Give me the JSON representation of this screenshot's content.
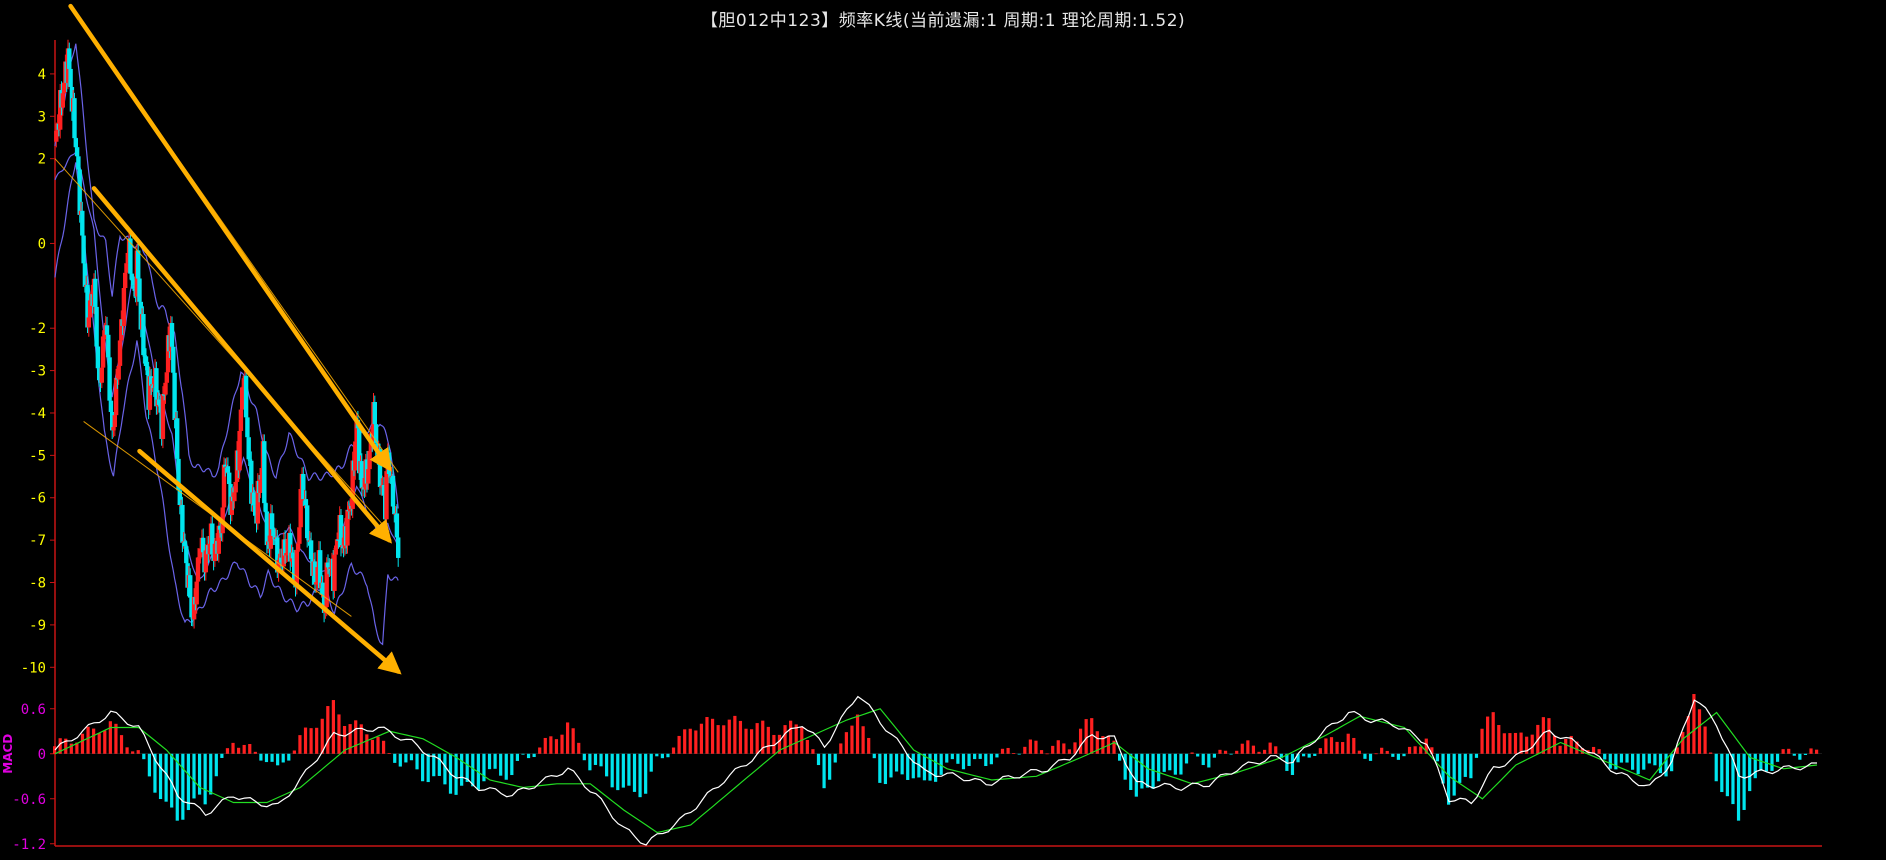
{
  "chart_title": "【胆012中123】频率K线(当前遗漏:1 周期:1 理论周期:1.52)",
  "chart_data": [
    {
      "type": "candlestick",
      "panel": "main",
      "title": "【胆012中123】频率K线(当前遗漏:1 周期:1 理论周期:1.52)",
      "y_ticks": [
        "4",
        "3",
        "2",
        "0",
        "-2",
        "-3",
        "-4",
        "-5",
        "-6",
        "-7",
        "-8",
        "-9",
        "-10"
      ],
      "ylim": [
        -10.3,
        4.8
      ],
      "bars_count": 264,
      "up_color": "#ff2020",
      "down_color": "#00e5ee",
      "close_path": [
        [
          0,
          2.4
        ],
        [
          10,
          4.4
        ],
        [
          17,
          2.0
        ],
        [
          25,
          -1.8
        ],
        [
          30,
          -1.0
        ],
        [
          34,
          -3.5
        ],
        [
          39,
          -1.7
        ],
        [
          44,
          -4.6
        ],
        [
          51,
          -2.0
        ],
        [
          56,
          0.0
        ],
        [
          61,
          -1.3
        ],
        [
          63,
          -0.4
        ],
        [
          66,
          -1.8
        ],
        [
          72,
          -3.5
        ],
        [
          76,
          -3.2
        ],
        [
          82,
          -4.2
        ],
        [
          89,
          -1.9
        ],
        [
          95,
          -5.7
        ],
        [
          97,
          -6.5
        ],
        [
          106,
          -8.9
        ],
        [
          112,
          -7.0
        ],
        [
          115,
          -7.5
        ],
        [
          120,
          -6.9
        ],
        [
          122,
          -7.4
        ],
        [
          124,
          -7.1
        ],
        [
          128,
          -6.7
        ],
        [
          131,
          -5.0
        ],
        [
          136,
          -6.3
        ],
        [
          141,
          -5.0
        ],
        [
          145,
          -3.0
        ],
        [
          150,
          -5.5
        ],
        [
          154,
          -6.5
        ],
        [
          160,
          -5.0
        ],
        [
          163,
          -7.2
        ],
        [
          167,
          -6.6
        ],
        [
          172,
          -7.6
        ],
        [
          175,
          -7.4
        ],
        [
          180,
          -7.0
        ],
        [
          185,
          -8.0
        ],
        [
          190,
          -5.5
        ],
        [
          195,
          -7.0
        ],
        [
          200,
          -8.0
        ],
        [
          203,
          -7.5
        ],
        [
          207,
          -8.7
        ],
        [
          210,
          -7.5
        ],
        [
          214,
          -7.8
        ],
        [
          218,
          -6.7
        ],
        [
          222,
          -7.2
        ],
        [
          224,
          -6.7
        ],
        [
          228,
          -6.0
        ],
        [
          232,
          -4.2
        ],
        [
          236,
          -5.8
        ],
        [
          241,
          -5.3
        ],
        [
          245,
          -4.0
        ],
        [
          250,
          -5.5
        ],
        [
          254,
          -6.2
        ],
        [
          256,
          -5.0
        ],
        [
          260,
          -6.0
        ],
        [
          264,
          -7.2
        ]
      ],
      "bollinger": {
        "upper": [
          [
            0,
            2.3
          ],
          [
            16,
            4.8
          ],
          [
            30,
            0.5
          ],
          [
            39,
            0.0
          ],
          [
            44,
            -1.2
          ],
          [
            50,
            0.2
          ],
          [
            60,
            0.0
          ],
          [
            70,
            -0.2
          ],
          [
            75,
            -1.0
          ],
          [
            80,
            -1.5
          ],
          [
            85,
            -1.6
          ],
          [
            92,
            -2.2
          ],
          [
            98,
            -3.5
          ],
          [
            103,
            -5.0
          ],
          [
            108,
            -5.3
          ],
          [
            116,
            -5.3
          ],
          [
            121,
            -5.5
          ],
          [
            126,
            -5.3
          ],
          [
            133,
            -4.3
          ],
          [
            143,
            -3.0
          ],
          [
            155,
            -4.0
          ],
          [
            163,
            -5.0
          ],
          [
            170,
            -5.5
          ],
          [
            180,
            -4.5
          ],
          [
            195,
            -5.5
          ],
          [
            208,
            -5.5
          ],
          [
            220,
            -5.3
          ],
          [
            228,
            -4.8
          ],
          [
            240,
            -4.4
          ],
          [
            250,
            -4.2
          ],
          [
            258,
            -4.8
          ],
          [
            264,
            -6.3
          ]
        ],
        "middle": [
          [
            0,
            1.5
          ],
          [
            16,
            2.2
          ],
          [
            30,
            0.3
          ],
          [
            37,
            -2.0
          ],
          [
            44,
            -3.6
          ],
          [
            54,
            -2.0
          ],
          [
            60,
            -0.7
          ],
          [
            70,
            -2.0
          ],
          [
            78,
            -3.3
          ],
          [
            90,
            -4.5
          ],
          [
            100,
            -7.0
          ],
          [
            110,
            -8.0
          ],
          [
            118,
            -7.6
          ],
          [
            125,
            -7.0
          ],
          [
            135,
            -6.0
          ],
          [
            145,
            -5.1
          ],
          [
            155,
            -6.0
          ],
          [
            163,
            -6.7
          ],
          [
            170,
            -7.0
          ],
          [
            180,
            -6.7
          ],
          [
            190,
            -7.3
          ],
          [
            200,
            -7.6
          ],
          [
            210,
            -7.8
          ],
          [
            220,
            -6.8
          ],
          [
            232,
            -5.7
          ],
          [
            240,
            -6.3
          ],
          [
            248,
            -6.8
          ],
          [
            256,
            -6.6
          ],
          [
            264,
            -7.2
          ]
        ],
        "lower": [
          [
            0,
            -0.8
          ],
          [
            16,
            2.0
          ],
          [
            28,
            -1.5
          ],
          [
            38,
            -4.5
          ],
          [
            45,
            -5.5
          ],
          [
            52,
            -4.0
          ],
          [
            63,
            -2.3
          ],
          [
            70,
            -4.0
          ],
          [
            80,
            -5.5
          ],
          [
            92,
            -8.0
          ],
          [
            100,
            -9.0
          ],
          [
            110,
            -8.7
          ],
          [
            120,
            -8.2
          ],
          [
            128,
            -8.0
          ],
          [
            140,
            -7.5
          ],
          [
            150,
            -8.0
          ],
          [
            158,
            -8.3
          ],
          [
            164,
            -7.8
          ],
          [
            175,
            -8.3
          ],
          [
            186,
            -8.6
          ],
          [
            194,
            -8.5
          ],
          [
            206,
            -8.0
          ],
          [
            215,
            -8.7
          ],
          [
            221,
            -8.2
          ],
          [
            228,
            -7.6
          ],
          [
            240,
            -8.0
          ],
          [
            246,
            -9.0
          ],
          [
            252,
            -9.5
          ],
          [
            256,
            -7.8
          ],
          [
            264,
            -8.0
          ]
        ]
      },
      "trend_lines": [
        {
          "kind": "thin",
          "from": [
            12,
            5.6
          ],
          "to": [
            264,
            -5.4
          ]
        },
        {
          "kind": "thin",
          "from": [
            0,
            2.0
          ],
          "to": [
            257,
            -6.8
          ]
        },
        {
          "kind": "thin",
          "from": [
            22,
            -4.2
          ],
          "to": [
            228,
            -8.8
          ]
        },
        {
          "kind": "arrow",
          "from": [
            12,
            5.6
          ],
          "to": [
            257,
            -5.3
          ]
        },
        {
          "kind": "arrow",
          "from": [
            30,
            1.3
          ],
          "to": [
            257,
            -7.0
          ]
        },
        {
          "kind": "arrow",
          "from": [
            65,
            -4.9
          ],
          "to": [
            264,
            -10.1
          ]
        }
      ],
      "trend_color": "#ffb000",
      "bollinger_color": "#6a63e8"
    },
    {
      "type": "macd",
      "panel": "sub",
      "name": "MACD",
      "y_ticks": [
        "0.6",
        "0",
        "-0.6",
        "-1.2"
      ],
      "ylim": [
        -1.23,
        0.85
      ],
      "dif_path": [
        [
          0,
          0.05
        ],
        [
          10,
          0.55
        ],
        [
          15,
          0.35
        ],
        [
          18,
          -0.05
        ],
        [
          22,
          -0.55
        ],
        [
          27,
          -0.8
        ],
        [
          32,
          -0.55
        ],
        [
          36,
          -0.65
        ],
        [
          40,
          -0.7
        ],
        [
          44,
          -0.35
        ],
        [
          50,
          0.25
        ],
        [
          58,
          0.35
        ],
        [
          64,
          0.15
        ],
        [
          68,
          -0.05
        ],
        [
          72,
          -0.3
        ],
        [
          76,
          -0.45
        ],
        [
          82,
          -0.55
        ],
        [
          88,
          -0.35
        ],
        [
          92,
          -0.2
        ],
        [
          97,
          -0.55
        ],
        [
          102,
          -1.0
        ],
        [
          106,
          -1.2
        ],
        [
          112,
          -0.9
        ],
        [
          120,
          -0.35
        ],
        [
          128,
          0.1
        ],
        [
          134,
          0.4
        ],
        [
          138,
          0.1
        ],
        [
          144,
          0.8
        ],
        [
          150,
          0.25
        ],
        [
          156,
          -0.25
        ],
        [
          162,
          -0.3
        ],
        [
          167,
          -0.4
        ],
        [
          172,
          -0.3
        ],
        [
          178,
          -0.2
        ],
        [
          182,
          -0.05
        ],
        [
          186,
          0.25
        ],
        [
          190,
          0.2
        ],
        [
          194,
          -0.4
        ],
        [
          202,
          -0.45
        ],
        [
          207,
          -0.4
        ],
        [
          212,
          -0.2
        ],
        [
          218,
          -0.05
        ],
        [
          222,
          -0.1
        ],
        [
          226,
          0.2
        ],
        [
          232,
          0.55
        ],
        [
          236,
          0.45
        ],
        [
          240,
          0.4
        ],
        [
          246,
          0.15
        ],
        [
          250,
          -0.6
        ],
        [
          254,
          -0.65
        ],
        [
          258,
          -0.2
        ],
        [
          262,
          -0.05
        ],
        [
          268,
          0.3
        ],
        [
          274,
          0.1
        ],
        [
          280,
          -0.25
        ],
        [
          286,
          -0.45
        ],
        [
          290,
          -0.1
        ],
        [
          294,
          0.75
        ],
        [
          298,
          0.4
        ],
        [
          302,
          -0.3
        ],
        [
          306,
          -0.25
        ],
        [
          310,
          -0.2
        ],
        [
          316,
          -0.15
        ]
      ],
      "dea_path": [
        [
          0,
          0.0
        ],
        [
          10,
          0.35
        ],
        [
          15,
          0.35
        ],
        [
          20,
          0.05
        ],
        [
          26,
          -0.45
        ],
        [
          32,
          -0.65
        ],
        [
          38,
          -0.65
        ],
        [
          44,
          -0.45
        ],
        [
          52,
          0.05
        ],
        [
          60,
          0.3
        ],
        [
          66,
          0.2
        ],
        [
          72,
          -0.05
        ],
        [
          78,
          -0.35
        ],
        [
          84,
          -0.45
        ],
        [
          90,
          -0.4
        ],
        [
          96,
          -0.4
        ],
        [
          102,
          -0.75
        ],
        [
          108,
          -1.05
        ],
        [
          114,
          -0.95
        ],
        [
          122,
          -0.45
        ],
        [
          130,
          0.05
        ],
        [
          136,
          0.25
        ],
        [
          142,
          0.45
        ],
        [
          148,
          0.6
        ],
        [
          154,
          0.05
        ],
        [
          160,
          -0.2
        ],
        [
          168,
          -0.35
        ],
        [
          176,
          -0.3
        ],
        [
          184,
          -0.05
        ],
        [
          190,
          0.15
        ],
        [
          196,
          -0.2
        ],
        [
          204,
          -0.4
        ],
        [
          212,
          -0.25
        ],
        [
          220,
          -0.05
        ],
        [
          228,
          0.25
        ],
        [
          234,
          0.5
        ],
        [
          242,
          0.35
        ],
        [
          250,
          -0.3
        ],
        [
          256,
          -0.6
        ],
        [
          262,
          -0.15
        ],
        [
          270,
          0.15
        ],
        [
          278,
          -0.1
        ],
        [
          286,
          -0.35
        ],
        [
          292,
          0.2
        ],
        [
          298,
          0.55
        ],
        [
          304,
          -0.05
        ],
        [
          310,
          -0.2
        ],
        [
          316,
          -0.15
        ]
      ],
      "dif_color": "#ffffff",
      "dea_color": "#22dd22",
      "hist_up_color": "#ff2020",
      "hist_down_color": "#00e5ee"
    }
  ]
}
